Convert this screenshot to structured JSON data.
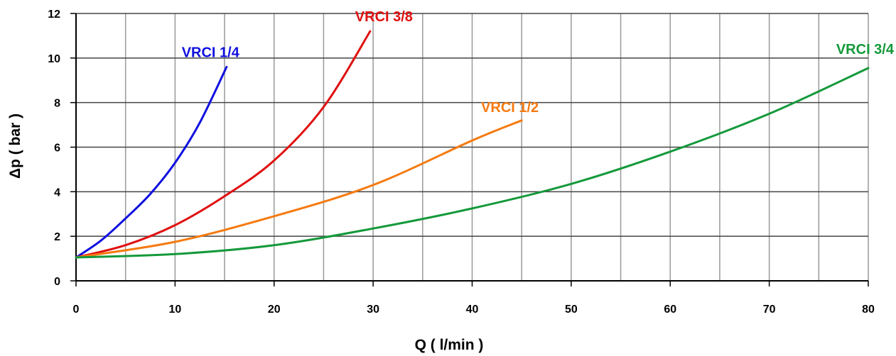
{
  "chart_data": {
    "type": "line",
    "xlabel": "Q ( l/min )",
    "ylabel": "Δp ( bar )",
    "xlim": [
      0,
      80
    ],
    "ylim": [
      0,
      12
    ],
    "x_ticks": [
      0,
      10,
      20,
      30,
      40,
      50,
      60,
      70,
      80
    ],
    "y_ticks": [
      0,
      2,
      4,
      6,
      8,
      10,
      12
    ],
    "x_grid_step": 5,
    "y_grid_step": 2,
    "grid": true,
    "legend": "inline labels at curve ends",
    "series": [
      {
        "name": "VRCI 1/4",
        "color": "#1010e0",
        "x": [
          0,
          2.5,
          5,
          7.5,
          10,
          12.5,
          15.2
        ],
        "y": [
          1.05,
          1.8,
          2.8,
          3.9,
          5.3,
          7.1,
          9.6
        ]
      },
      {
        "name": "VRCI 3/8",
        "color": "#e01010",
        "x": [
          0,
          5,
          10,
          15,
          20,
          25,
          29.7
        ],
        "y": [
          1.05,
          1.6,
          2.5,
          3.8,
          5.4,
          7.8,
          11.2
        ]
      },
      {
        "name": "VRCI 1/2",
        "color": "#f57a10",
        "x": [
          0,
          10,
          20,
          30,
          40,
          45
        ],
        "y": [
          1.05,
          1.75,
          2.9,
          4.3,
          6.3,
          7.2
        ]
      },
      {
        "name": "VRCI 3/4",
        "color": "#14993a",
        "x": [
          0,
          10,
          20,
          30,
          40,
          50,
          60,
          70,
          80
        ],
        "y": [
          1.05,
          1.2,
          1.6,
          2.35,
          3.25,
          4.35,
          5.8,
          7.5,
          9.55
        ]
      }
    ]
  }
}
